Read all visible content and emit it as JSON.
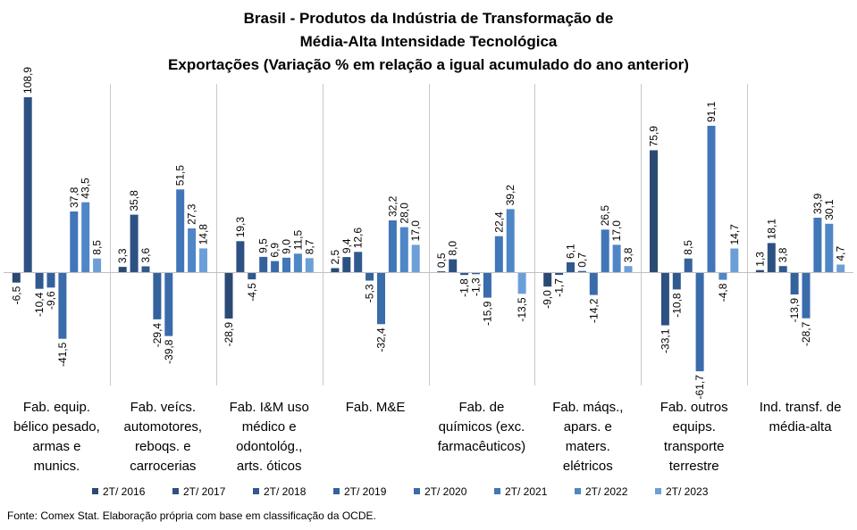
{
  "chart_data": {
    "type": "bar",
    "title_lines": [
      "Brasil - Produtos da Indústria de Transformação de",
      "Média-Alta Intensidade Tecnológica",
      "Exportações (Variação % em relação a igual acumulado do ano anterior)"
    ],
    "categories": [
      [
        "Fab. equip.",
        "bélico pesado,",
        "armas e",
        "munics."
      ],
      [
        "Fab. veícs.",
        "automotores,",
        "reboqs. e",
        "carrocerias"
      ],
      [
        "Fab. I&M uso",
        "médico e",
        "odontológ.,",
        "arts. óticos"
      ],
      [
        "Fab. M&E"
      ],
      [
        "Fab. de",
        "químicos (exc.",
        "farmacêuticos)"
      ],
      [
        "Fab. máqs.,",
        "apars. e",
        "maters.",
        "elétricos"
      ],
      [
        "Fab. outros",
        "equips.",
        "transporte",
        "terrestre"
      ],
      [
        "Ind. transf. de",
        "média-alta"
      ]
    ],
    "series": [
      {
        "name": "2T/ 2016",
        "color": "#2b4a73",
        "values": [
          -6.5,
          3.3,
          -28.9,
          2.5,
          0.5,
          -9.0,
          75.9,
          1.3
        ]
      },
      {
        "name": "2T/ 2017",
        "color": "#2d5182",
        "values": [
          108.9,
          35.8,
          19.3,
          9.4,
          8.0,
          -1.7,
          -33.1,
          18.1
        ]
      },
      {
        "name": "2T/ 2018",
        "color": "#30598e",
        "values": [
          -10.4,
          3.6,
          -4.5,
          12.6,
          -1.8,
          6.1,
          -10.8,
          3.8
        ]
      },
      {
        "name": "2T/ 2019",
        "color": "#34629c",
        "values": [
          -9.6,
          -29.4,
          9.5,
          -5.3,
          -1.3,
          0.7,
          8.5,
          -13.9
        ]
      },
      {
        "name": "2T/ 2020",
        "color": "#3a6baa",
        "values": [
          -41.5,
          -39.8,
          6.9,
          -32.4,
          -15.9,
          -14.2,
          -61.7,
          -28.7
        ]
      },
      {
        "name": "2T/ 2021",
        "color": "#4176b8",
        "values": [
          37.8,
          51.5,
          9.0,
          32.2,
          22.4,
          26.5,
          91.1,
          33.9
        ]
      },
      {
        "name": "2T/ 2022",
        "color": "#4f86c6",
        "values": [
          43.5,
          27.3,
          11.5,
          28.0,
          39.2,
          17.0,
          -4.8,
          30.1
        ]
      },
      {
        "name": "2T/ 2023",
        "color": "#6c9fd8",
        "values": [
          8.5,
          14.8,
          8.7,
          17.0,
          -13.5,
          3.8,
          14.7,
          4.7
        ]
      }
    ],
    "ylim": [
      -75,
      118
    ],
    "grid": false,
    "legend_position": "bottom"
  },
  "source": "Fonte: Comex Stat. Elaboração própria com base em classificação da OCDE."
}
